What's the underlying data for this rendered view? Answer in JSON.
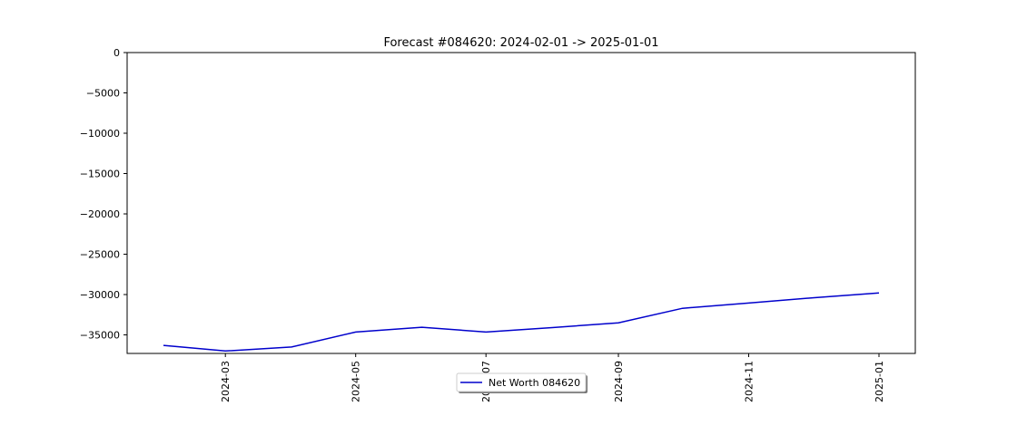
{
  "chart_data": {
    "type": "line",
    "title": "Forecast #084620: 2024-02-01 -> 2025-01-01",
    "xlabel": "",
    "ylabel": "",
    "x": [
      "2024-02-01",
      "2024-03-01",
      "2024-04-01",
      "2024-05-01",
      "2024-06-01",
      "2024-07-01",
      "2024-08-01",
      "2024-09-01",
      "2024-10-01",
      "2024-11-01",
      "2024-12-01",
      "2025-01-01"
    ],
    "series": [
      {
        "name": "Net Worth 084620",
        "color": "#0000cc",
        "values": [
          -36300,
          -37000,
          -36500,
          -34650,
          -34050,
          -34650,
          -34100,
          -33500,
          -31700,
          -31050,
          -30400,
          -29800
        ]
      }
    ],
    "xlim": [
      "2024-01-15",
      "2025-01-18"
    ],
    "ylim": [
      -37300,
      0
    ],
    "x_ticks": [
      "2024-03",
      "2024-05",
      "2024-07",
      "2024-09",
      "2024-11",
      "2025-01"
    ],
    "y_ticks": [
      0,
      -5000,
      -10000,
      -15000,
      -20000,
      -25000,
      -30000,
      -35000
    ],
    "y_tick_labels": [
      "0",
      "−5000",
      "−10000",
      "−15000",
      "−20000",
      "−25000",
      "−30000",
      "−35000"
    ],
    "legend_position": "bottom-center",
    "grid": false
  }
}
